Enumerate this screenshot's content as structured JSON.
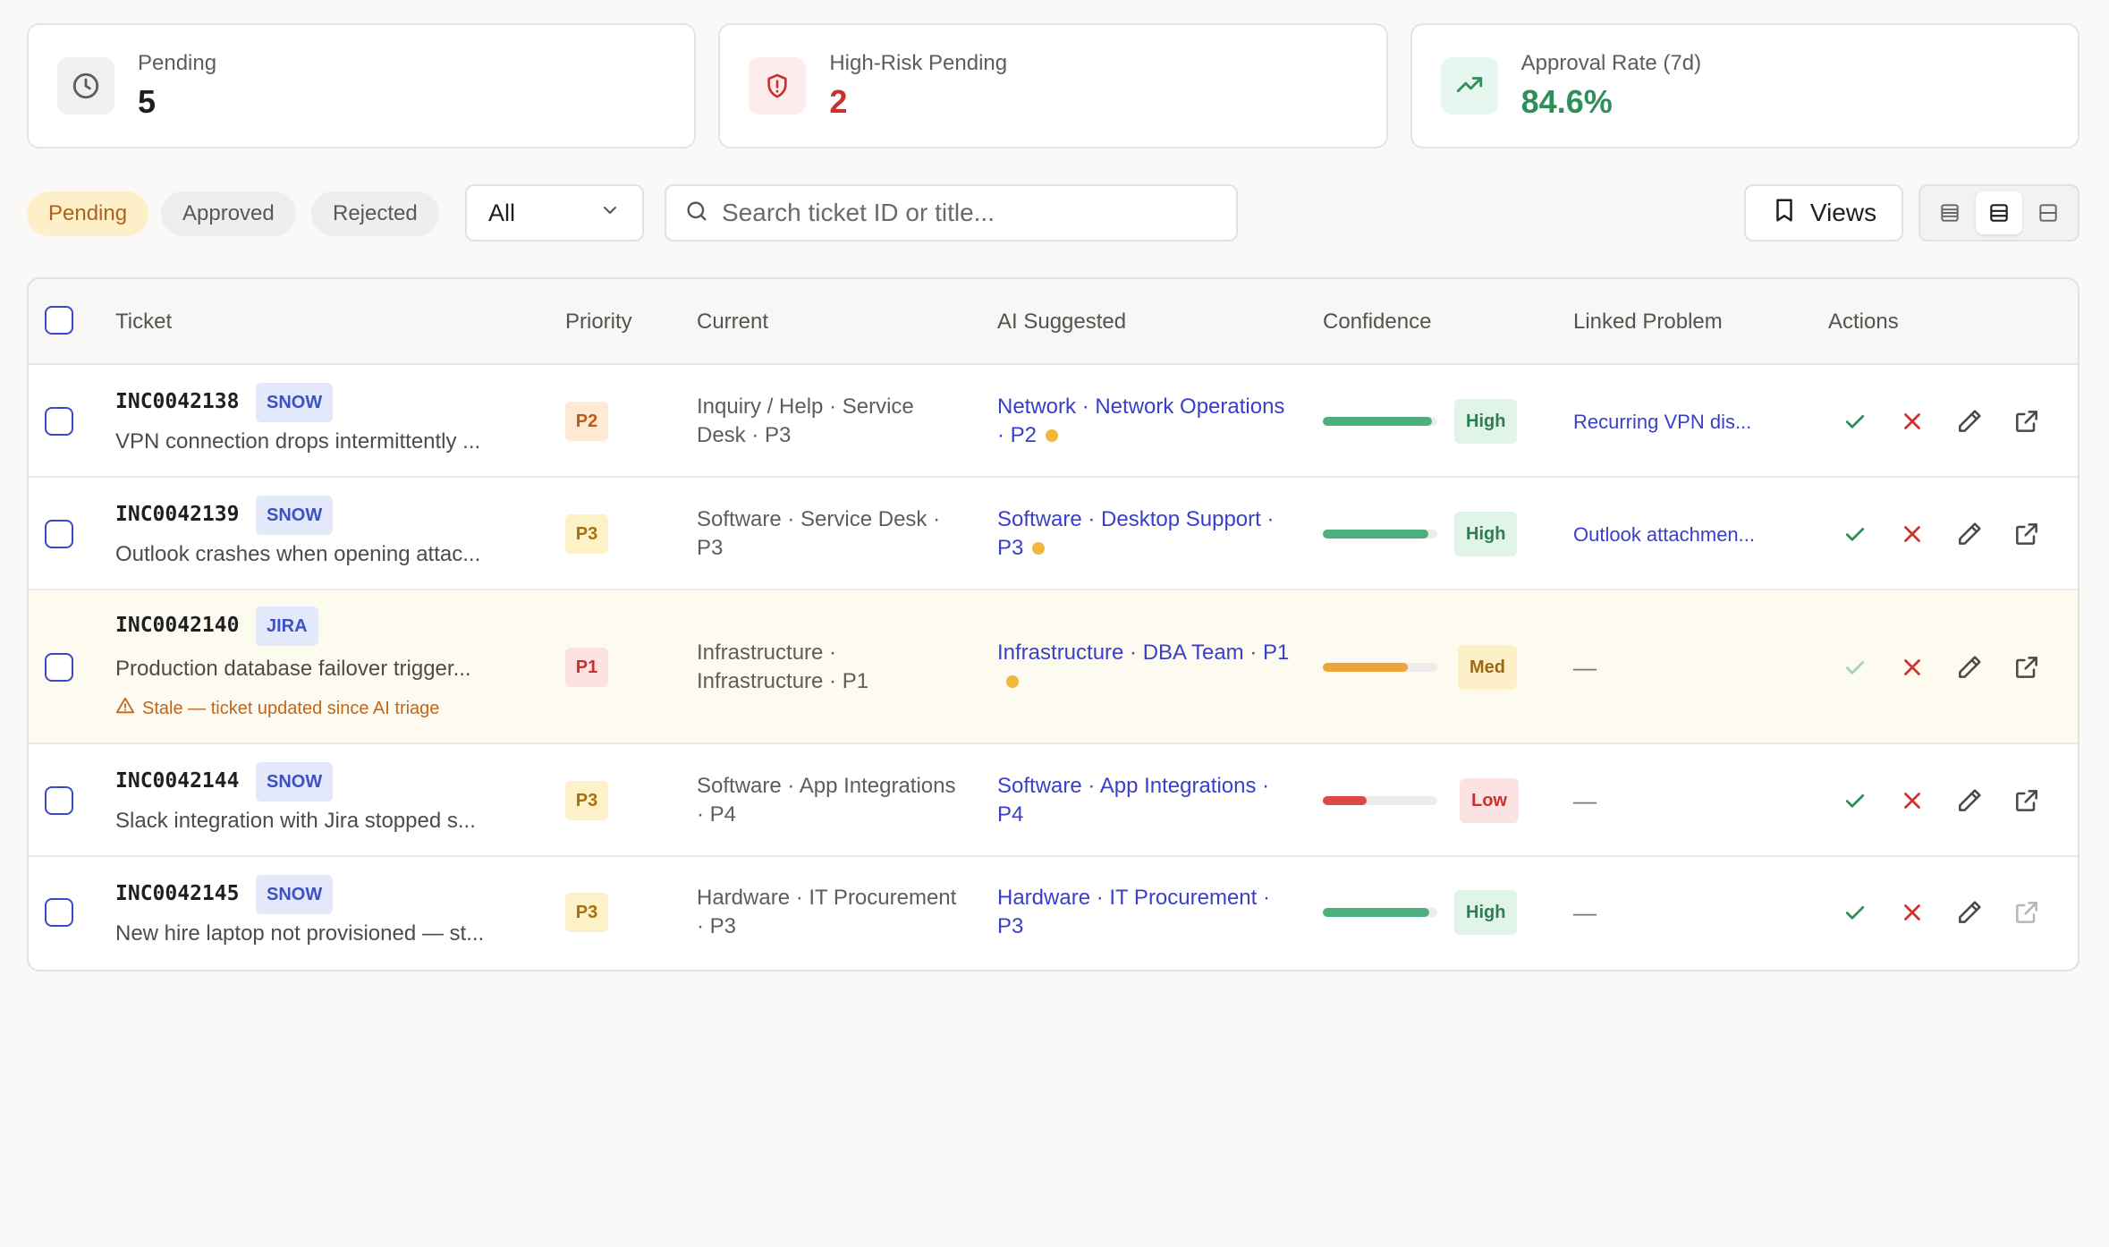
{
  "stats": [
    {
      "label": "Pending",
      "value": "5",
      "icon": "clock-icon"
    },
    {
      "label": "High-Risk Pending",
      "value": "2",
      "icon": "shield-alert-icon",
      "color": "#c8312f"
    },
    {
      "label": "Approval Rate (7d)",
      "value": "84.6%",
      "icon": "trending-up-icon",
      "color": "#2f8f5b"
    }
  ],
  "filters": {
    "tabs": [
      "Pending",
      "Approved",
      "Rejected"
    ],
    "active_tab": "Pending",
    "select_value": "All",
    "search_placeholder": "Search ticket ID or title...",
    "views_label": "Views",
    "density_active": "comfortable"
  },
  "table": {
    "columns": [
      "Ticket",
      "Priority",
      "Current",
      "AI Suggested",
      "Confidence",
      "Linked Problem",
      "Actions"
    ],
    "rows": [
      {
        "id": "INC0042138",
        "source": "SNOW",
        "title": "VPN connection drops intermittently ...",
        "priority": "P2",
        "current": "Inquiry / Help · Service Desk · P3",
        "suggested": "Network · Network Operations · P2",
        "suggested_changed": true,
        "confidence": 0.95,
        "confidence_label": "High",
        "linked_problem": "Recurring VPN dis...",
        "stale": false
      },
      {
        "id": "INC0042139",
        "source": "SNOW",
        "title": "Outlook crashes when opening attac...",
        "priority": "P3",
        "current": "Software · Service Desk · P3",
        "suggested": "Software · Desktop Support · P3",
        "suggested_changed": true,
        "confidence": 0.92,
        "confidence_label": "High",
        "linked_problem": "Outlook attachmen...",
        "stale": false
      },
      {
        "id": "INC0042140",
        "source": "JIRA",
        "title": "Production database failover trigger...",
        "stale_note": "Stale — ticket updated since AI triage",
        "priority": "P1",
        "current": "Infrastructure · Infrastructure · P1",
        "suggested": "Infrastructure · DBA Team · P1",
        "suggested_changed": true,
        "confidence": 0.74,
        "confidence_label": "Med",
        "linked_problem": "—",
        "stale": true
      },
      {
        "id": "INC0042144",
        "source": "SNOW",
        "title": "Slack integration with Jira stopped s...",
        "priority": "P3",
        "current": "Software · App Integrations · P4",
        "suggested": "Software · App Integrations · P4",
        "suggested_changed": false,
        "confidence": 0.38,
        "confidence_label": "Low",
        "linked_problem": "—",
        "stale": false
      },
      {
        "id": "INC0042145",
        "source": "SNOW",
        "title": "New hire laptop not provisioned — st...",
        "priority": "P3",
        "current": "Hardware · IT Procurement · P3",
        "suggested": "Hardware · IT Procurement · P3",
        "suggested_changed": false,
        "confidence": 0.93,
        "confidence_label": "High",
        "linked_problem": "—",
        "stale": false
      }
    ]
  },
  "colors": {
    "accent": "#3a3fc8",
    "high": "#4caf7d",
    "med": "#eba53a",
    "low": "#e04848",
    "approve": "#2f8f5b",
    "reject": "#d0312d"
  }
}
